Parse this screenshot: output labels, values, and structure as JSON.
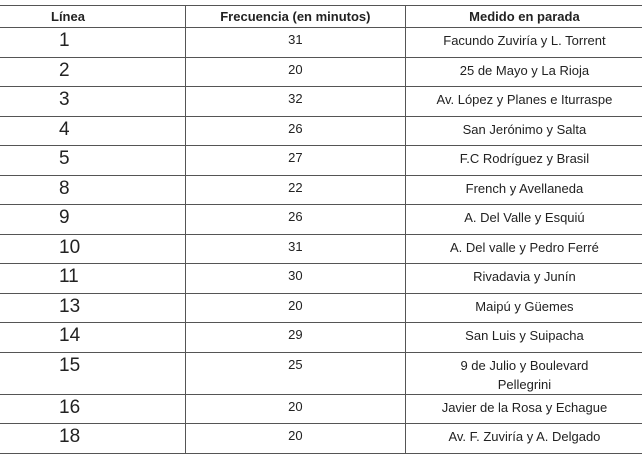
{
  "table": {
    "headers": [
      "Línea",
      "Frecuencia (en minutos)",
      "Medido en parada"
    ],
    "rows": [
      {
        "linea": "1",
        "frecuencia": "31",
        "parada": "Facundo Zuviría y L. Torrent"
      },
      {
        "linea": "2",
        "frecuencia": "20",
        "parada": "25 de Mayo y La Rioja"
      },
      {
        "linea": "3",
        "frecuencia": "32",
        "parada": "Av. López y Planes e Iturraspe"
      },
      {
        "linea": "4",
        "frecuencia": "26",
        "parada": "San Jerónimo y Salta"
      },
      {
        "linea": "5",
        "frecuencia": "27",
        "parada": "F.C Rodríguez y Brasil"
      },
      {
        "linea": "8",
        "frecuencia": "22",
        "parada": "French y Avellaneda"
      },
      {
        "linea": "9",
        "frecuencia": "26",
        "parada": "A. Del Valle y Esquiú"
      },
      {
        "linea": "10",
        "frecuencia": "31",
        "parada": "A. Del valle y Pedro Ferré"
      },
      {
        "linea": "11",
        "frecuencia": "30",
        "parada": "Rivadavia y Junín"
      },
      {
        "linea": "13",
        "frecuencia": "20",
        "parada": "Maipú y Güemes"
      },
      {
        "linea": "14",
        "frecuencia": "29",
        "parada": "San Luis y Suipacha"
      },
      {
        "linea": "15",
        "frecuencia": "25",
        "parada": "9 de Julio y Boulevard Pellegrini"
      },
      {
        "linea": "16",
        "frecuencia": "20",
        "parada": "Javier de la Rosa y Echague"
      },
      {
        "linea": "18",
        "frecuencia": "20",
        "parada": "Av. F. Zuviría y A. Delgado"
      }
    ]
  }
}
